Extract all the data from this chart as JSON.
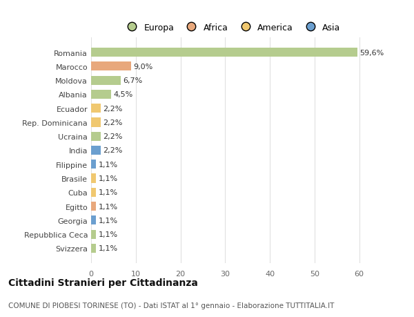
{
  "categories": [
    "Romania",
    "Marocco",
    "Moldova",
    "Albania",
    "Ecuador",
    "Rep. Dominicana",
    "Ucraina",
    "India",
    "Filippine",
    "Brasile",
    "Cuba",
    "Egitto",
    "Georgia",
    "Repubblica Ceca",
    "Svizzera"
  ],
  "values": [
    59.6,
    9.0,
    6.7,
    4.5,
    2.2,
    2.2,
    2.2,
    2.2,
    1.1,
    1.1,
    1.1,
    1.1,
    1.1,
    1.1,
    1.1
  ],
  "bar_colors": [
    "#b5cc8e",
    "#e8a87c",
    "#b5cc8e",
    "#b5cc8e",
    "#f0c870",
    "#f0c870",
    "#b5cc8e",
    "#6b9fcf",
    "#6b9fcf",
    "#f0c870",
    "#f0c870",
    "#e8a87c",
    "#6b9fcf",
    "#b5cc8e",
    "#b5cc8e"
  ],
  "labels": [
    "59,6%",
    "9,0%",
    "6,7%",
    "4,5%",
    "2,2%",
    "2,2%",
    "2,2%",
    "2,2%",
    "1,1%",
    "1,1%",
    "1,1%",
    "1,1%",
    "1,1%",
    "1,1%",
    "1,1%"
  ],
  "legend_labels": [
    "Europa",
    "Africa",
    "America",
    "Asia"
  ],
  "legend_colors": [
    "#b5cc8e",
    "#e8a87c",
    "#f0c870",
    "#6b9fcf"
  ],
  "xlim": [
    0,
    63
  ],
  "xticks": [
    0,
    10,
    20,
    30,
    40,
    50,
    60
  ],
  "title": "Cittadini Stranieri per Cittadinanza",
  "subtitle": "COMUNE DI PIOBESI TORINESE (TO) - Dati ISTAT al 1° gennaio - Elaborazione TUTTITALIA.IT",
  "background_color": "#ffffff",
  "plot_background_color": "#ffffff",
  "grid_color": "#e0e0e0",
  "bar_height": 0.65,
  "label_fontsize": 8,
  "tick_fontsize": 8,
  "title_fontsize": 10,
  "subtitle_fontsize": 7.5
}
